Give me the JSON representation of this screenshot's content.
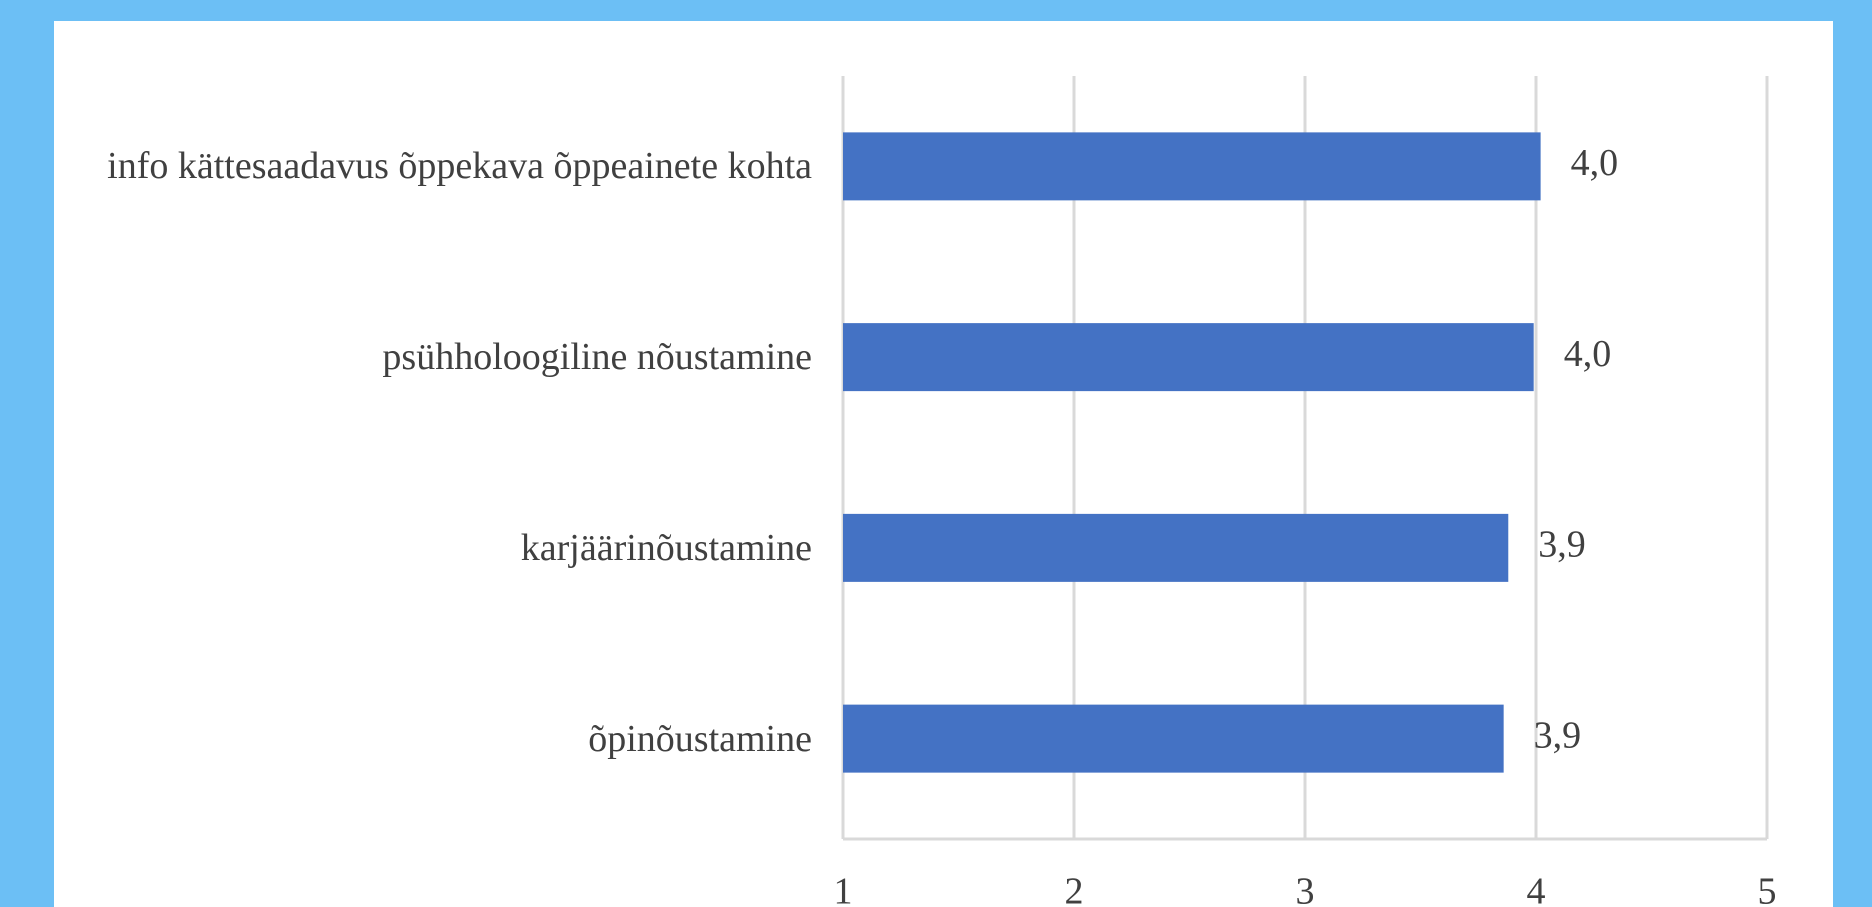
{
  "chart_data": {
    "type": "bar",
    "orientation": "horizontal",
    "categories": [
      "info kättesaadavus õppekava õppeainete kohta",
      "psühholoogiline nõustamine",
      "karjäärinõustamine",
      "õpinõustamine"
    ],
    "values": [
      4.02,
      3.99,
      3.88,
      3.86
    ],
    "value_labels": [
      "4,0",
      "4,0",
      "3,9",
      "3,9"
    ],
    "color": "#4472c4",
    "xlim": [
      1,
      5
    ],
    "xticks": [
      1,
      2,
      3,
      4,
      5
    ],
    "grid": true
  }
}
